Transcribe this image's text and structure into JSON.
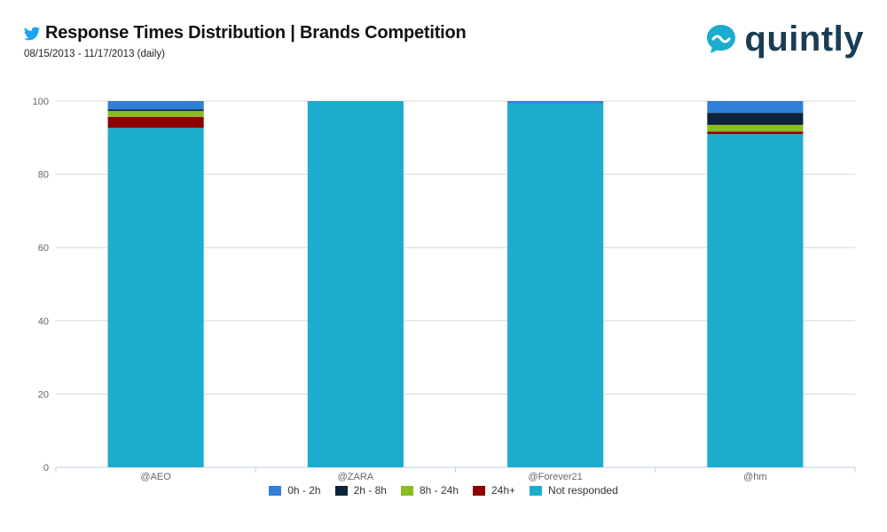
{
  "header": {
    "title": "Response Times Distribution | Brands Competition",
    "subtitle": "08/15/2013 - 11/17/2013 (daily)",
    "network_icon": "twitter-bird-icon"
  },
  "logo": {
    "text": "quintly",
    "icon": "quintly-logo-icon",
    "color": "#1b3d54"
  },
  "chart_data": {
    "type": "bar",
    "stacked": true,
    "title": "Response Times Distribution | Brands Competition",
    "xlabel": "",
    "ylabel": "",
    "ylim": [
      0,
      100
    ],
    "yticks": [
      0,
      20,
      40,
      60,
      80,
      100
    ],
    "categories": [
      "@AEO",
      "@ZARA",
      "@Forever21",
      "@hm"
    ],
    "legend_position": "bottom",
    "grid": true,
    "series": [
      {
        "name": "Not responded",
        "color": "#1cacce",
        "values": [
          92.7,
          100,
          99.3,
          91.0
        ]
      },
      {
        "name": "24h+",
        "color": "#8e0000",
        "values": [
          3.0,
          0,
          0,
          0.7
        ]
      },
      {
        "name": "8h - 24h",
        "color": "#8bbc21",
        "values": [
          1.6,
          0,
          0,
          1.8
        ]
      },
      {
        "name": "2h - 8h",
        "color": "#0d233a",
        "values": [
          0.4,
          0,
          0,
          3.3
        ]
      },
      {
        "name": "0h - 2h",
        "color": "#2f7ed8",
        "values": [
          2.3,
          0,
          0.7,
          3.2
        ]
      }
    ],
    "legend_order": [
      "0h - 2h",
      "2h - 8h",
      "8h - 24h",
      "24h+",
      "Not responded"
    ]
  },
  "colors": {
    "grid": "#d8d8d8",
    "axis": "#c0d0e0",
    "tick_label": "#666666"
  }
}
